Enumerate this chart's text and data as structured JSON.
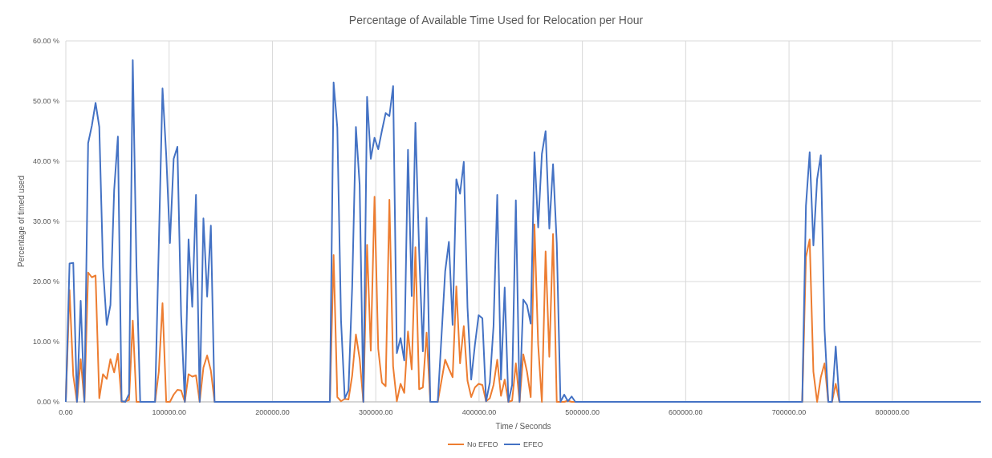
{
  "chart_data": {
    "type": "line",
    "title": "Percentage of Available Time Used for Relocation per Hour",
    "xlabel": "Time / Seconds",
    "ylabel": "Percentage of timed used",
    "x": [
      0,
      3600,
      7200,
      10800,
      14400,
      18000,
      21600,
      25200,
      28800,
      32400,
      36000,
      39600,
      43200,
      46800,
      50400,
      54000,
      57600,
      61200,
      64800,
      68400,
      72000,
      75600,
      79200,
      82800,
      86400,
      90000,
      93600,
      97200,
      100800,
      104400,
      108000,
      111600,
      115200,
      118800,
      122400,
      126000,
      129600,
      133200,
      136800,
      140400,
      144000,
      252000,
      255600,
      259200,
      262800,
      266400,
      270000,
      273600,
      277200,
      280800,
      284400,
      288000,
      291600,
      295200,
      298800,
      302400,
      306000,
      309600,
      313200,
      316800,
      320400,
      324000,
      327600,
      331200,
      334800,
      338400,
      342000,
      345600,
      349200,
      352800,
      356400,
      360000,
      363600,
      367200,
      370800,
      374400,
      378000,
      381600,
      385200,
      388800,
      392400,
      396000,
      399600,
      403200,
      406800,
      410400,
      414000,
      417600,
      421200,
      424800,
      428400,
      432000,
      435600,
      439200,
      442800,
      446400,
      450000,
      453600,
      457200,
      460800,
      464400,
      468000,
      471600,
      475200,
      478800,
      482400,
      486000,
      489600,
      493200,
      709200,
      712800,
      716400,
      720000,
      723600,
      727200,
      730800,
      734400,
      738000,
      741600,
      745200,
      748800,
      885600
    ],
    "series": [
      {
        "name": "No EFEO",
        "color": "#ed7d31",
        "values": [
          0,
          18.6,
          4.4,
          0,
          7.1,
          0,
          21.5,
          20.7,
          21,
          0.6,
          4.6,
          3.8,
          7.1,
          4.9,
          8,
          0,
          0.1,
          0.3,
          13.5,
          0,
          0,
          0,
          0,
          0,
          0,
          5,
          16.4,
          0,
          0,
          1.2,
          2,
          1.9,
          0,
          4.6,
          4.2,
          4.4,
          0,
          5.7,
          7.7,
          5.2,
          0,
          0,
          0,
          24.4,
          0.8,
          0.1,
          0.5,
          0.4,
          4.4,
          11.2,
          7.2,
          0,
          26.1,
          8.5,
          34.1,
          8.8,
          3.2,
          2.6,
          33.6,
          5.9,
          0.1,
          3,
          1.5,
          11.7,
          5.4,
          25.7,
          2.1,
          2.4,
          11.5,
          0,
          0,
          0,
          3.5,
          7,
          5.5,
          4.1,
          19.2,
          6.4,
          12.6,
          3.5,
          0.8,
          2.4,
          3,
          2.8,
          0.1,
          0.6,
          2.8,
          7,
          1,
          3.7,
          0,
          0.2,
          6.4,
          0,
          7.9,
          5,
          0.8,
          29.5,
          9.5,
          0,
          25,
          7.5,
          27.9,
          0,
          0,
          0,
          0.2,
          0,
          0,
          0,
          0,
          24.1,
          27,
          5,
          0,
          4.1,
          6.4,
          0,
          0,
          3,
          0,
          0
        ]
      },
      {
        "name": "EFEO",
        "color": "#4472c4",
        "values": [
          0,
          23,
          23.1,
          0,
          16.8,
          0,
          43,
          45.9,
          49.7,
          45.7,
          22.4,
          12.8,
          16.1,
          35.2,
          44.1,
          0.1,
          0,
          1.3,
          56.8,
          22.4,
          0,
          0,
          0,
          0,
          0,
          26,
          52.1,
          41,
          26.4,
          40.4,
          42.4,
          14.4,
          0,
          27,
          15.8,
          34.4,
          0,
          30.5,
          17.5,
          29.3,
          0,
          0,
          0,
          53.1,
          45.6,
          13.5,
          0.6,
          1.9,
          19.2,
          45.7,
          36.1,
          0,
          50.7,
          40.4,
          43.9,
          42,
          45.1,
          48,
          47.5,
          52.5,
          8.1,
          10.6,
          6.9,
          41.9,
          17.6,
          46.4,
          25,
          8.4,
          30.6,
          0,
          0,
          0,
          10.8,
          21.7,
          26.6,
          12.8,
          37,
          34.6,
          39.9,
          15.7,
          3.7,
          9.5,
          14.4,
          13.9,
          0.1,
          3.2,
          12.6,
          34.4,
          3.7,
          19,
          0,
          2.8,
          33.5,
          0,
          17,
          16.1,
          13,
          41.5,
          29,
          41.2,
          45,
          28.8,
          39.5,
          26.4,
          0,
          1.2,
          0.1,
          0.9,
          0,
          0,
          0,
          32.6,
          41.5,
          26,
          37,
          41,
          12,
          0,
          0,
          9.2,
          0,
          0
        ]
      }
    ],
    "xlim": [
      0,
      885600
    ],
    "xticks": [
      {
        "value": 0,
        "label": "0.00"
      },
      {
        "value": 100000,
        "label": "100000.00"
      },
      {
        "value": 200000,
        "label": "200000.00"
      },
      {
        "value": 300000,
        "label": "300000.00"
      },
      {
        "value": 400000,
        "label": "400000.00"
      },
      {
        "value": 500000,
        "label": "500000.00"
      },
      {
        "value": 600000,
        "label": "600000.00"
      },
      {
        "value": 700000,
        "label": "700000.00"
      },
      {
        "value": 800000,
        "label": "800000.00"
      }
    ],
    "ylim": [
      0,
      60
    ],
    "yticks": [
      {
        "value": 0,
        "label": "0.00 %"
      },
      {
        "value": 10,
        "label": "10.00 %"
      },
      {
        "value": 20,
        "label": "20.00 %"
      },
      {
        "value": 30,
        "label": "30.00 %"
      },
      {
        "value": 40,
        "label": "40.00 %"
      },
      {
        "value": 50,
        "label": "50.00 %"
      },
      {
        "value": 60,
        "label": "60.00 %"
      }
    ],
    "grid": true,
    "legend": "bottom",
    "marker": "none",
    "line_style": "solid"
  }
}
